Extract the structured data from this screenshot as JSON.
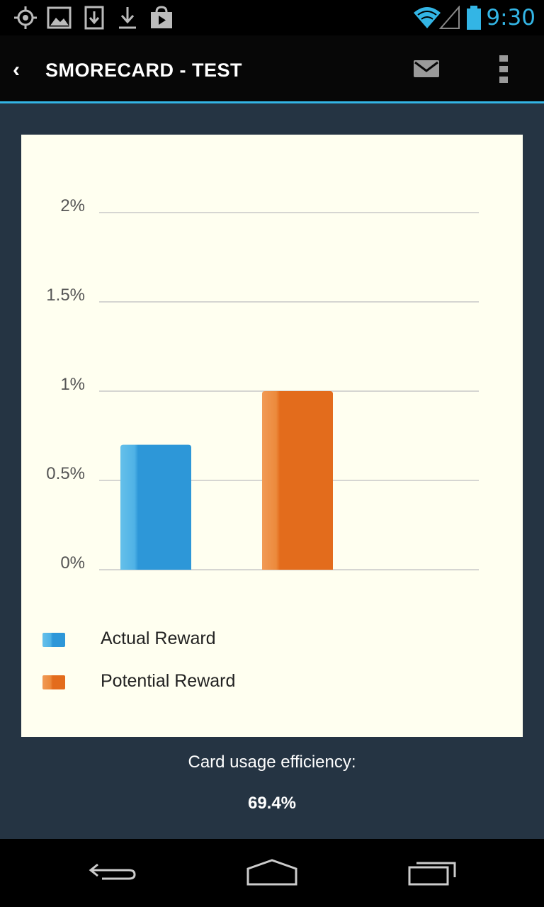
{
  "status_bar": {
    "time": "9:30",
    "icons": [
      "gps-icon",
      "gallery-icon",
      "sd-download-icon",
      "download-icon",
      "play-store-icon",
      "wifi-icon",
      "signal-icon",
      "battery-icon"
    ]
  },
  "action_bar": {
    "title": "SMORECARD - TEST",
    "icons": [
      "back-chevron-icon",
      "mail-icon",
      "overflow-menu-icon"
    ]
  },
  "colors": {
    "accent": "#33b5e5",
    "actual": "#2d97d8",
    "potential": "#e36c1c",
    "background": "#253443",
    "card": "#fffff0"
  },
  "chart_data": {
    "type": "bar",
    "categories": [
      "Actual Reward",
      "Potential Reward"
    ],
    "values": [
      0.7,
      1.0
    ],
    "unit": "%",
    "ylim": [
      0,
      2
    ],
    "yticks": [
      "0%",
      "0.5%",
      "1%",
      "1.5%",
      "2%"
    ],
    "ytick_values": [
      0,
      0.5,
      1,
      1.5,
      2
    ],
    "grid": true,
    "legend": {
      "placement": "bottom",
      "entries": [
        "Actual Reward",
        "Potential Reward"
      ]
    }
  },
  "summary": {
    "label": "Card usage efficiency:",
    "value": "69.4%"
  },
  "nav_bar": {
    "buttons": [
      "back-button",
      "home-button",
      "recents-button"
    ]
  }
}
